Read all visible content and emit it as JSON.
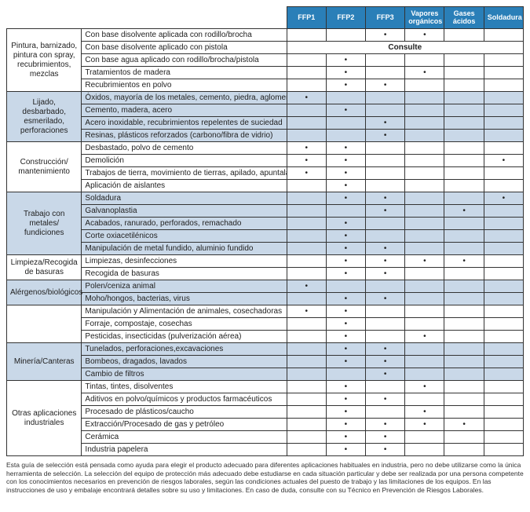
{
  "colors": {
    "header_bg": "#2a7fb8",
    "header_text": "#ffffff",
    "shade_bg": "#c9d8e8",
    "border": "#333333",
    "text": "#222222"
  },
  "columns": [
    "FFP1",
    "FFP2",
    "FFP3",
    "Vapores orgánicos",
    "Gases ácidos",
    "Soldadura"
  ],
  "dot": "•",
  "consult_label": "Consulte",
  "groups": [
    {
      "category": "Pintura, barnizado, pintura con spray, recubrimientos, mezclas",
      "shaded": false,
      "rows": [
        {
          "activity": "Con base disolvente aplicada con rodillo/brocha",
          "marks": [
            "",
            "",
            "•",
            "•",
            "",
            ""
          ]
        },
        {
          "activity": "Con base disolvente aplicado con pistola",
          "consult": true
        },
        {
          "activity": "Con base agua aplicado con rodillo/brocha/pistola",
          "marks": [
            "",
            "•",
            "",
            "",
            "",
            ""
          ]
        },
        {
          "activity": "Tratamientos de madera",
          "marks": [
            "",
            "•",
            "",
            "•",
            "",
            ""
          ]
        },
        {
          "activity": "Recubrimientos en polvo",
          "marks": [
            "",
            "•",
            "•",
            "",
            "",
            ""
          ]
        }
      ]
    },
    {
      "category": "Lijado, desbarbado, esmerilado, perforaciones",
      "shaded": true,
      "rows": [
        {
          "activity": "Óxidos, mayoría de los metales, cemento, piedra, aglomerados",
          "marks": [
            "•",
            "",
            "",
            "",
            "",
            ""
          ]
        },
        {
          "activity": "Cemento, madera, acero",
          "marks": [
            "",
            "•",
            "",
            "",
            "",
            ""
          ]
        },
        {
          "activity": "Acero inoxidable, recubrimientos repelentes de suciedad",
          "marks": [
            "",
            "",
            "•",
            "",
            "",
            ""
          ]
        },
        {
          "activity": "Resinas, plásticos reforzados (carbono/fibra de vidrio)",
          "marks": [
            "",
            "",
            "•",
            "",
            "",
            ""
          ]
        }
      ]
    },
    {
      "category": "Construcción/ mantenimiento",
      "shaded": false,
      "rows": [
        {
          "activity": "Desbastado, polvo de cemento",
          "marks": [
            "•",
            "•",
            "",
            "",
            "",
            ""
          ]
        },
        {
          "activity": "Demolición",
          "marks": [
            "•",
            "•",
            "",
            "",
            "",
            "•"
          ]
        },
        {
          "activity": "Trabajos de tierra, movimiento de tierras, apilado, apuntalado",
          "marks": [
            "•",
            "•",
            "",
            "",
            "",
            ""
          ]
        },
        {
          "activity": "Aplicación de aislantes",
          "marks": [
            "",
            "•",
            "",
            "",
            "",
            ""
          ]
        }
      ]
    },
    {
      "category": "Trabajo con metales/ fundiciones",
      "shaded": true,
      "rows": [
        {
          "activity": "Soldadura",
          "marks": [
            "",
            "•",
            "•",
            "",
            "",
            "•"
          ]
        },
        {
          "activity": "Galvanoplastia",
          "marks": [
            "",
            "",
            "•",
            "",
            "•",
            ""
          ]
        },
        {
          "activity": "Acabados, ranurado, perforados, remachado",
          "marks": [
            "",
            "•",
            "",
            "",
            "",
            ""
          ]
        },
        {
          "activity": "Corte oxiacetilénicos",
          "marks": [
            "",
            "•",
            "",
            "",
            "",
            ""
          ]
        },
        {
          "activity": "Manipulación de metal fundido, aluminio fundido",
          "marks": [
            "",
            "•",
            "•",
            "",
            "",
            ""
          ]
        }
      ]
    },
    {
      "category": "Limpieza/Recogida de basuras",
      "shaded": false,
      "rows": [
        {
          "activity": "Limpiezas, desinfecciones",
          "marks": [
            "",
            "•",
            "•",
            "•",
            "•",
            ""
          ]
        },
        {
          "activity": "Recogida de basuras",
          "marks": [
            "",
            "•",
            "•",
            "",
            "",
            ""
          ]
        }
      ]
    },
    {
      "category": "Alérgenos/biológicos",
      "shaded": true,
      "rows": [
        {
          "activity": "Polen/ceniza animal",
          "marks": [
            "•",
            "",
            "",
            "",
            "",
            ""
          ]
        },
        {
          "activity": "Moho/hongos, bacterias, virus",
          "marks": [
            "",
            "•",
            "•",
            "",
            "",
            ""
          ]
        }
      ]
    },
    {
      "category": "",
      "shaded": false,
      "rows": [
        {
          "activity": "Manipulación y Alimentación de animales, cosechadoras",
          "marks": [
            "•",
            "•",
            "",
            "",
            "",
            ""
          ]
        },
        {
          "activity": "Forraje, compostaje, cosechas",
          "marks": [
            "",
            "•",
            "",
            "",
            "",
            ""
          ]
        },
        {
          "activity": "Pesticidas, insecticidas (pulverización aérea)",
          "marks": [
            "",
            "•",
            "",
            "•",
            "",
            ""
          ]
        }
      ]
    },
    {
      "category": "Minería/Canteras",
      "shaded": true,
      "rows": [
        {
          "activity": "Tunelados, perforaciones,excavaciones",
          "marks": [
            "",
            "•",
            "•",
            "",
            "",
            ""
          ]
        },
        {
          "activity": "Bombeos, dragados, lavados",
          "marks": [
            "",
            "•",
            "•",
            "",
            "",
            ""
          ]
        },
        {
          "activity": "Cambio de filtros",
          "marks": [
            "",
            "",
            "•",
            "",
            "",
            ""
          ]
        }
      ]
    },
    {
      "category": "Otras aplicaciones industriales",
      "shaded": false,
      "rows": [
        {
          "activity": "Tintas, tintes, disolventes",
          "marks": [
            "",
            "•",
            "",
            "•",
            "",
            ""
          ]
        },
        {
          "activity": "Aditivos en polvo/químicos y productos farmacéuticos",
          "marks": [
            "",
            "•",
            "•",
            "",
            "",
            ""
          ]
        },
        {
          "activity": "Procesado de plásticos/caucho",
          "marks": [
            "",
            "•",
            "",
            "•",
            "",
            ""
          ]
        },
        {
          "activity": "Extracción/Procesado de gas y petróleo",
          "marks": [
            "",
            "•",
            "•",
            "•",
            "•",
            ""
          ]
        },
        {
          "activity": "Cerámica",
          "marks": [
            "",
            "•",
            "•",
            "",
            "",
            ""
          ]
        },
        {
          "activity": "Industria papelera",
          "marks": [
            "",
            "•",
            "•",
            "",
            "",
            ""
          ]
        }
      ]
    }
  ],
  "footnote": "Esta guía de selección está pensada como ayuda para elegir el producto adecuado para diferentes aplicaciones habituales en industria, pero no debe utilizarse como la única herramienta de selección. La selección del equipo de protección más adecuado debe estudiarse en cada situación particular y debe ser realizada por una persona competente con los conocimientos necesarios en prevención de riesgos laborales, según las condiciones actuales del puesto de trabajo y las limitaciones de los equipos. En las instrucciones de uso y embalaje encontrará detalles sobre su uso y limitaciones. En caso de duda, consulte con su Técnico en Prevención de Riesgos Laborales."
}
